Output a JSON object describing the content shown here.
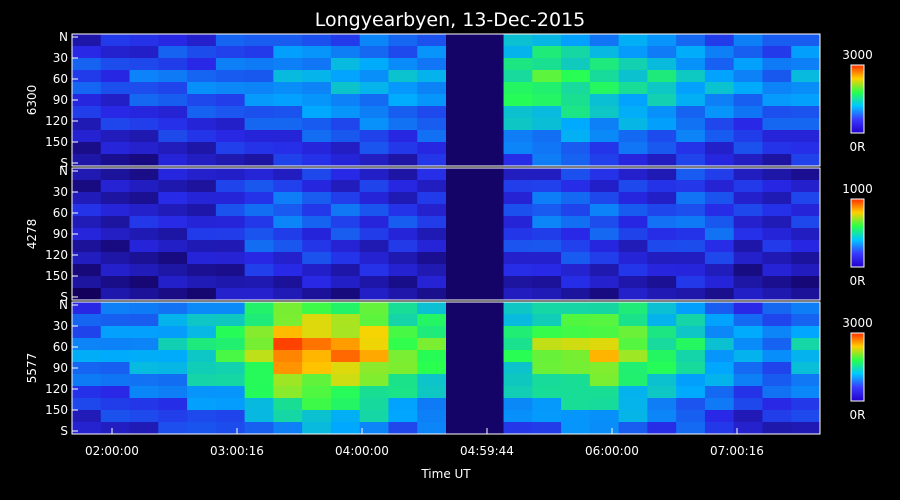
{
  "chart_data": {
    "type": "heatmap",
    "title": "Longyearbyen, 13-Dec-2015",
    "xlabel": "Time UT",
    "x_ticks": [
      "02:00:00",
      "03:00:16",
      "04:00:00",
      "04:59:44",
      "06:00:00",
      "07:00:16"
    ],
    "y_ticks": [
      "N",
      "30",
      "60",
      "90",
      "120",
      "150",
      "S"
    ],
    "panels": [
      {
        "wavelength": "6300",
        "colorbar_max": "3000",
        "colorbar_min": "0R",
        "intensity_profile": [
          0.25,
          0.25,
          0.28,
          0.3,
          0.3,
          0.32,
          0.35,
          0.4,
          0.42,
          0.42,
          0.42,
          0.4,
          0.4,
          0.02,
          0.02,
          0.6,
          0.62,
          0.6,
          0.55,
          0.52,
          0.5,
          0.45,
          0.4,
          0.38,
          0.35,
          0.4
        ]
      },
      {
        "wavelength": "4278",
        "colorbar_max": "1000",
        "colorbar_min": "0R",
        "intensity_profile": [
          0.15,
          0.15,
          0.16,
          0.17,
          0.18,
          0.22,
          0.3,
          0.3,
          0.28,
          0.26,
          0.24,
          0.22,
          0.2,
          0.02,
          0.02,
          0.25,
          0.3,
          0.3,
          0.28,
          0.25,
          0.25,
          0.3,
          0.28,
          0.2,
          0.2,
          0.2
        ]
      },
      {
        "wavelength": "5577",
        "colorbar_max": "3000",
        "colorbar_min": "0R",
        "intensity_profile": [
          0.35,
          0.38,
          0.42,
          0.45,
          0.55,
          0.6,
          0.75,
          0.95,
          0.92,
          0.9,
          0.85,
          0.7,
          0.65,
          0.02,
          0.02,
          0.6,
          0.7,
          0.75,
          0.8,
          0.7,
          0.6,
          0.55,
          0.45,
          0.38,
          0.35,
          0.45
        ]
      }
    ]
  }
}
